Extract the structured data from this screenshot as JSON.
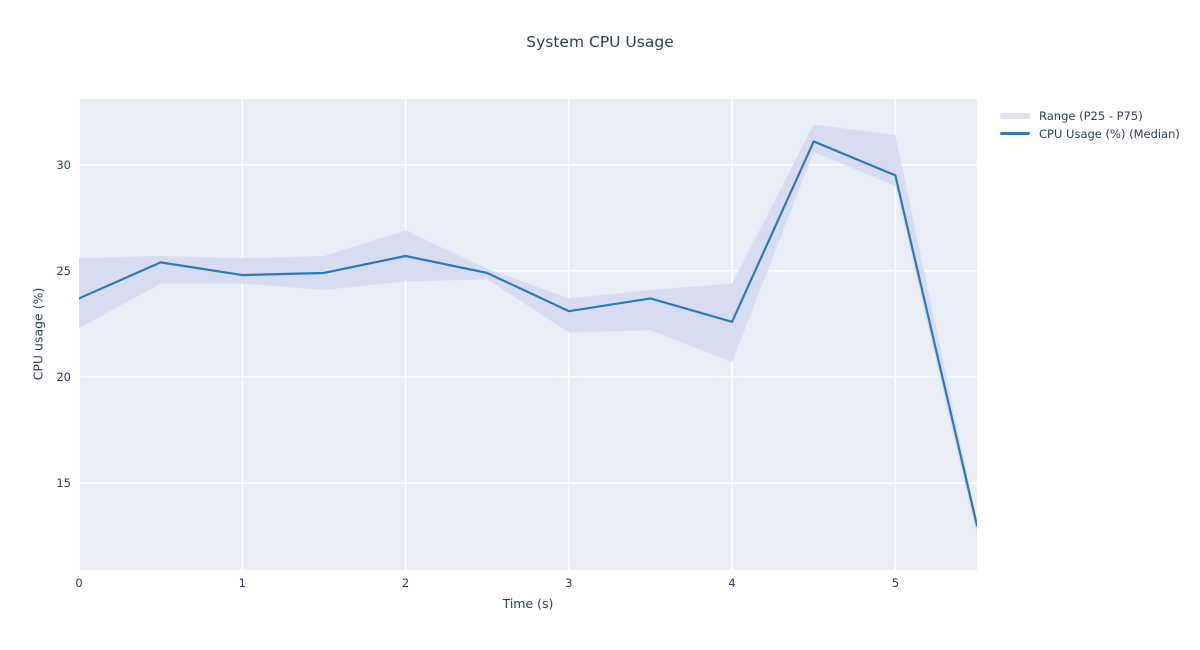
{
  "title": "System CPU Usage",
  "colors": {
    "text": "#2d3f5f",
    "line": "#2b7bba",
    "band": "#d8dcf0",
    "plot_bg": "#e8edf6",
    "grid": "#ffffff",
    "legend_band_swatch": "#dfe2f4"
  },
  "legend": {
    "items": [
      {
        "label": "Range (P25 - P75)",
        "swatch": "band"
      },
      {
        "label": "CPU Usage (%) (Median)",
        "swatch": "line"
      }
    ]
  },
  "chart_data": {
    "type": "line",
    "title": "System CPU Usage",
    "xlabel": "Time (s)",
    "ylabel": "CPU usage (%)",
    "x": [
      0,
      0.5,
      1,
      1.5,
      2,
      2.5,
      3,
      3.5,
      4,
      4.5,
      5,
      5.5
    ],
    "series": [
      {
        "name": "CPU Usage (%) (Median)",
        "role": "median",
        "values": [
          23.7,
          25.4,
          24.8,
          24.9,
          25.7,
          24.9,
          23.1,
          23.7,
          22.6,
          31.1,
          29.5,
          13.0
        ]
      },
      {
        "name": "P75",
        "role": "band-upper",
        "values": [
          25.6,
          25.7,
          25.6,
          25.7,
          26.9,
          25.1,
          23.7,
          24.1,
          24.4,
          31.9,
          31.4,
          13.2
        ]
      },
      {
        "name": "P25",
        "role": "band-lower",
        "values": [
          22.3,
          24.4,
          24.4,
          24.1,
          24.5,
          24.6,
          22.1,
          22.2,
          20.7,
          30.6,
          29.0,
          12.5
        ]
      }
    ],
    "band": {
      "name": "Range (P25 - P75)",
      "upper": "P75",
      "lower": "P25"
    },
    "xlim": [
      0,
      5.5
    ],
    "ylim": [
      10.9,
      33.1
    ],
    "xticks": [
      0,
      1,
      2,
      3,
      4,
      5
    ],
    "yticks": [
      15,
      20,
      25,
      30
    ],
    "grid": true,
    "legend_position": "outside-right-top"
  }
}
